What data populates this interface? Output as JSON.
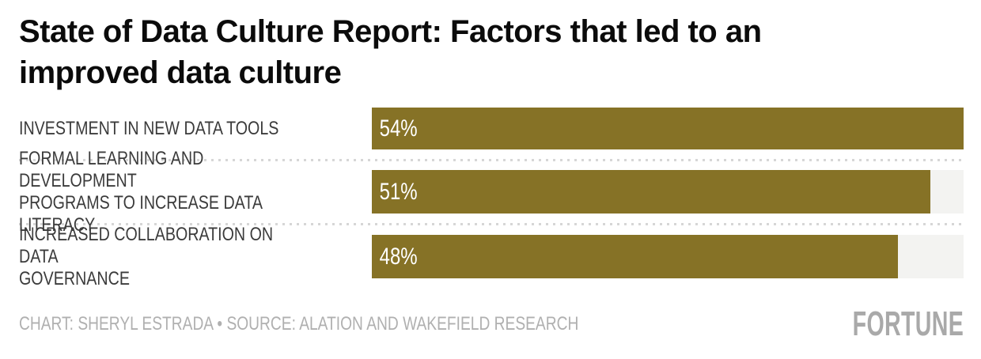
{
  "page": {
    "background": "#ffffff"
  },
  "header": {
    "title": "State of Data Culture Report: Factors that led to an\nimproved data culture"
  },
  "chart_data": {
    "type": "bar",
    "orientation": "horizontal",
    "title": "State of Data Culture Report: Factors that led to an improved data culture",
    "categories": [
      "INVESTMENT IN NEW DATA TOOLS",
      "FORMAL LEARNING AND DEVELOPMENT PROGRAMS TO INCREASE DATA LITERACY",
      "INCREASED COLLABORATION ON DATA GOVERNANCE"
    ],
    "display_labels": [
      "INVESTMENT IN NEW DATA TOOLS",
      "FORMAL LEARNING AND DEVELOPMENT\nPROGRAMS TO INCREASE DATA LITERACY",
      "INCREASED COLLABORATION ON DATA\nGOVERNANCE"
    ],
    "values": [
      54,
      51,
      48
    ],
    "value_labels": [
      "54%",
      "51%",
      "48%"
    ],
    "unit": "%",
    "scale_max": 54,
    "xlim": [
      0,
      54
    ],
    "bar_color": "#867226",
    "track_color": "#f3f3f1",
    "value_label_color": "#ffffff",
    "label_color": "#3b3b3b",
    "separator_style": "dotted",
    "grid": false,
    "legend": "none"
  },
  "footer": {
    "credit": "CHART: SHERYL ESTRADA • SOURCE: ALATION AND WAKEFIELD RESEARCH",
    "brand": "FORTUNE"
  }
}
